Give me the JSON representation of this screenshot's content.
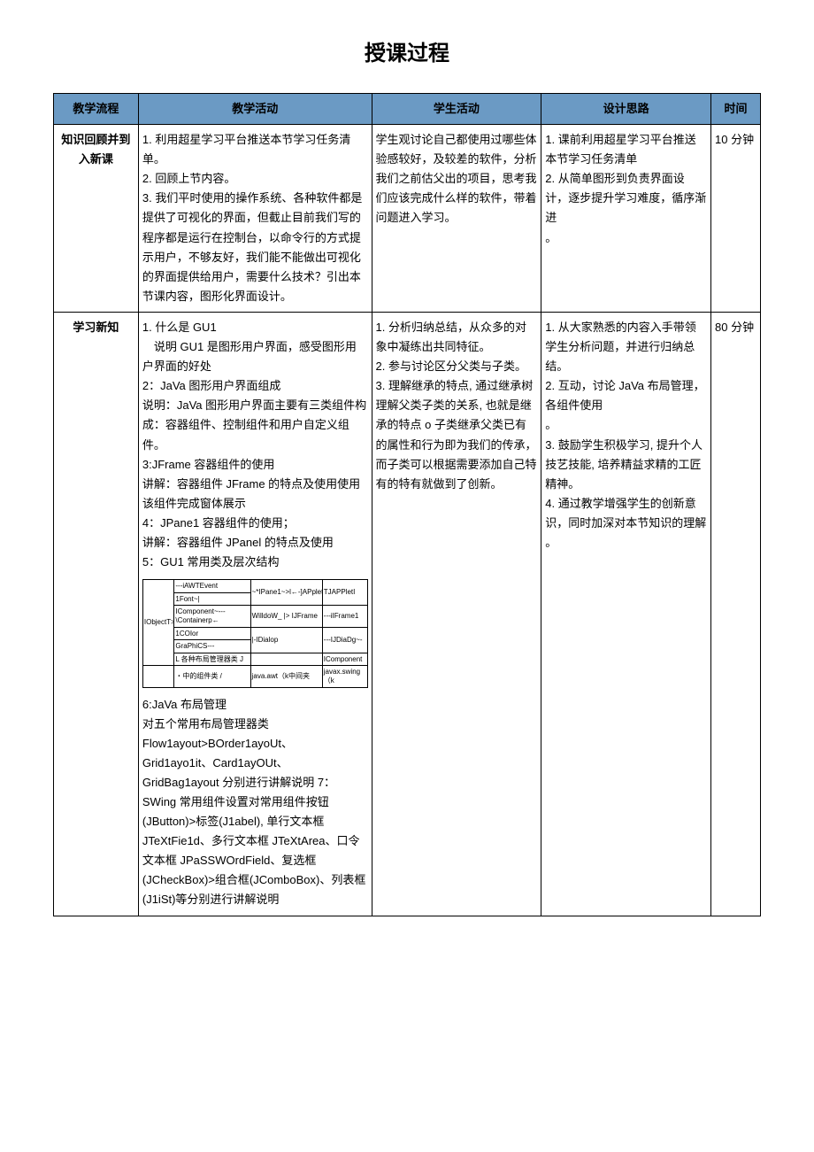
{
  "title": "授课过程",
  "headers": {
    "flow": "教学流程",
    "teach": "教学活动",
    "student": "学生活动",
    "design": "设计思路",
    "time": "时间"
  },
  "row1": {
    "flow": "知识回顾并到入新课",
    "teach": "1. 利用超星学习平台推送本节学习任务清单。\n2. 回顾上节内容。\n3. 我们平时使用的操作系统、各种软件都是提供了可视化的界面，但截止目前我们写的程序都是运行在控制台，以命令行的方式提示用户，不够友好，我们能不能做出可视化的界面提供给用户，需要什么技术？引出本节课内容，图形化界面设计。",
    "student": "学生观讨论自己都使用过哪些体验感较好，及较差的软件，分析我们之前估父出的项目，思考我们应该完成什么样的软件，带着问题进入学习。",
    "design": "1. 课前利用超星学习平台推送本节学习任务清单\n2. 从简单图形到负责界面设计，逐步提升学习难度，循序渐进\n。",
    "time": "10 分钟"
  },
  "row2": {
    "flow": "学习新知",
    "teach_p1": "1. 什么是 GU1\n　说明 GU1 是图形用户界面，感受图形用户界面的好处\n2：JaVa 图形用户界面组成\n说明：JaVa 图形用户界面主要有三类组件构成：容器组件、控制组件和用户自定义组件。\n3:JFrame 容器组件的使用\n讲解：容器组件 JFrame 的特点及使用使用该组件完成窗体展示\n4：JPane1 容器组件的使用；\n讲解：容器组件 JPanel 的特点及使用\n5：GU1 常用类及层次结构",
    "teach_p2": "6:JaVa 布局管理\n对五个常用布局管理器类\nFlow1ayout>BOrder1ayoUt、\nGrid1ayo1it、Card1ayOUt、\nGridBag1ayout 分别进行讲解说明 7：SWing 常用组件设置对常用组件按钮(JButton)>标签(J1abel), 单行文本框JTeXtFie1d、多行文本框 JTeXtArea、口令文本框 JPaSSWOrdField、复选框(JCheckBox)>组合框(JComboBox)、列表框(J1iSt)等分别进行讲解说明",
    "student": "1. 分析归纳总结，从众多的对象中凝练出共同特征。\n2. 参与讨论区分父类与子类。\n3. 理解继承的特点, 通过继承树理解父类子类的关系, 也就是继承的特点 o 子类继承父类已有的属性和行为即为我们的传承，而子类可以根据需要添加自己特有的特有就做到了创新。",
    "design": "1. 从大家熟悉的内容入手带领学生分析问题，并进行归纳总结。\n2. 互动，讨论 JaVa 布局管理，各组件使用\n。\n3. 鼓励学生积极学习, 提升个人技艺技能, 培养精益求精的工匠精神。\n4. 通过教学增强学生的创新意识，同时加深对本节知识的理解\n。",
    "time": "80 分钟"
  },
  "mini": {
    "c1": "IObjectT>↔",
    "c2a": "---iAWTEvent",
    "c2b": "1Font~|",
    "c2c": "IComponent~---\\Containerp←",
    "c2d": "1COIor",
    "c2e": "GraPhiCS---",
    "c2f": "L 各种布局管理器类 J",
    "c3a": "~*IPane1~>l←-]APplet\\↔",
    "c3b": "WilldoW_ |> IJFrame",
    "c3c": "|-IDialop",
    "c4a": "TJAPPletI",
    "c4b": "---iIFrame1",
    "c4c": "---IJDiaDg~-",
    "c4d": "IComponent",
    "caption_left": "・中的组件类 /",
    "caption_mid": "java.awt（k中间夹",
    "caption_right": "javax.swing（k"
  }
}
